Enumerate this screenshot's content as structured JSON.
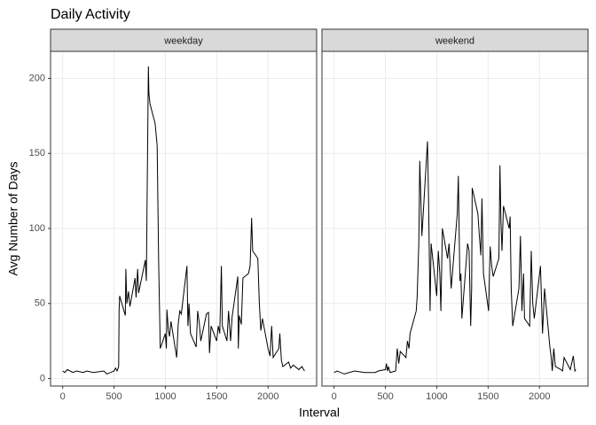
{
  "chart_data": {
    "type": "line",
    "title": "Daily Activity",
    "x_label": "Interval",
    "y_label": "Avg Number of Days",
    "xlim": [
      -118,
      2473
    ],
    "ylim": [
      -5,
      218
    ],
    "xticks": [
      0,
      500,
      1000,
      1500,
      2000
    ],
    "yticks": [
      0,
      50,
      100,
      150,
      200
    ],
    "grid": true,
    "panels": [
      {
        "name": "weekday",
        "color": "#000000",
        "x": [
          0,
          20,
          45,
          100,
          135,
          200,
          235,
          300,
          400,
          430,
          500,
          515,
          530,
          545,
          550,
          555,
          610,
          615,
          625,
          640,
          655,
          705,
          715,
          730,
          740,
          805,
          815,
          835,
          840,
          850,
          900,
          920,
          935,
          950,
          1000,
          1010,
          1015,
          1030,
          1040,
          1055,
          1110,
          1125,
          1140,
          1155,
          1210,
          1220,
          1230,
          1245,
          1300,
          1315,
          1330,
          1345,
          1400,
          1420,
          1430,
          1445,
          1500,
          1515,
          1530,
          1545,
          1555,
          1600,
          1615,
          1635,
          1650,
          1705,
          1710,
          1720,
          1740,
          1755,
          1810,
          1825,
          1840,
          1850,
          1900,
          1915,
          1930,
          1945,
          2000,
          2020,
          2035,
          2050,
          2105,
          2115,
          2130,
          2145,
          2200,
          2220,
          2245,
          2300,
          2330,
          2355
        ],
        "values": [
          5,
          4,
          6,
          4,
          5,
          4,
          5,
          4,
          5,
          3,
          5,
          7,
          5,
          8,
          46,
          55,
          42,
          73,
          50,
          58,
          48,
          67,
          54,
          73,
          57,
          79,
          65,
          208,
          190,
          183,
          170,
          155,
          77,
          20,
          30,
          20,
          46,
          32,
          28,
          38,
          14,
          36,
          45,
          43,
          75,
          35,
          50,
          30,
          21,
          45,
          37,
          25,
          43,
          44,
          17,
          35,
          25,
          35,
          30,
          75,
          35,
          25,
          45,
          25,
          41,
          68,
          20,
          42,
          36,
          67,
          70,
          75,
          107,
          85,
          80,
          50,
          32,
          40,
          20,
          15,
          35,
          14,
          20,
          30,
          12,
          8,
          11,
          7,
          9,
          6,
          8,
          5
        ]
      },
      {
        "name": "weekend",
        "color": "#000000",
        "x": [
          0,
          30,
          100,
          200,
          300,
          400,
          430,
          500,
          510,
          520,
          530,
          545,
          600,
          615,
          630,
          645,
          700,
          715,
          730,
          740,
          800,
          810,
          825,
          835,
          845,
          855,
          910,
          920,
          935,
          945,
          1000,
          1015,
          1030,
          1040,
          1055,
          1105,
          1120,
          1140,
          1200,
          1210,
          1225,
          1235,
          1245,
          1300,
          1315,
          1330,
          1340,
          1345,
          1400,
          1415,
          1430,
          1440,
          1455,
          1505,
          1520,
          1535,
          1550,
          1605,
          1615,
          1625,
          1635,
          1650,
          1705,
          1715,
          1725,
          1740,
          1800,
          1815,
          1830,
          1845,
          1855,
          1905,
          1920,
          1935,
          1950,
          2010,
          2030,
          2050,
          2100,
          2115,
          2125,
          2140,
          2155,
          2210,
          2225,
          2240,
          2300,
          2330,
          2345,
          2355
        ],
        "values": [
          4,
          5,
          3,
          5,
          4,
          4,
          5,
          6,
          10,
          5,
          8,
          4,
          5,
          20,
          10,
          18,
          14,
          25,
          20,
          30,
          45,
          55,
          90,
          145,
          120,
          95,
          158,
          120,
          45,
          90,
          55,
          85,
          70,
          45,
          100,
          80,
          90,
          60,
          110,
          135,
          65,
          70,
          40,
          90,
          85,
          35,
          60,
          127,
          110,
          95,
          82,
          120,
          70,
          45,
          88,
          75,
          68,
          80,
          142,
          105,
          85,
          115,
          100,
          108,
          60,
          35,
          60,
          95,
          45,
          70,
          40,
          35,
          85,
          50,
          40,
          75,
          30,
          60,
          22,
          14,
          5,
          20,
          8,
          6,
          5,
          14,
          6,
          15,
          5,
          6
        ]
      }
    ]
  }
}
